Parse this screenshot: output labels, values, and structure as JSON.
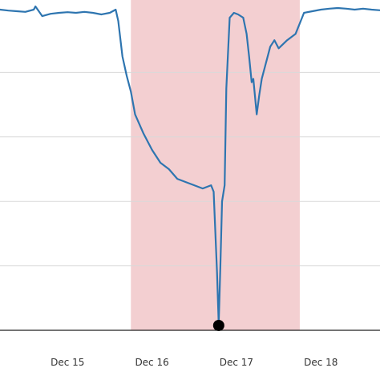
{
  "chart_data": {
    "type": "line",
    "title": "",
    "xlabel": "",
    "ylabel": "",
    "x_ticks": [
      {
        "x": 15,
        "label": "Dec 15"
      },
      {
        "x": 16,
        "label": "Dec 16"
      },
      {
        "x": 17,
        "label": "Dec 17"
      },
      {
        "x": 18,
        "label": "Dec 18"
      }
    ],
    "xlim": [
      14.2,
      18.7
    ],
    "ylim": [
      0,
      1
    ],
    "gridlines_y": [
      0.2,
      0.4,
      0.6,
      0.8
    ],
    "grid": "horizontal",
    "legend": "none",
    "shaded_region": {
      "from": 15.75,
      "to": 17.75,
      "color": "#f3cfd1"
    },
    "marker": {
      "x": 16.79,
      "y": 0.02,
      "color": "#000000"
    },
    "series": [
      {
        "color": "#2e75b0",
        "points": [
          [
            14.2,
            0.995
          ],
          [
            14.3,
            0.992
          ],
          [
            14.4,
            0.99
          ],
          [
            14.5,
            0.988
          ],
          [
            14.6,
            0.995
          ],
          [
            14.62,
            1.005
          ],
          [
            14.7,
            0.975
          ],
          [
            14.8,
            0.982
          ],
          [
            14.9,
            0.985
          ],
          [
            15.0,
            0.987
          ],
          [
            15.1,
            0.985
          ],
          [
            15.2,
            0.988
          ],
          [
            15.3,
            0.985
          ],
          [
            15.4,
            0.98
          ],
          [
            15.5,
            0.985
          ],
          [
            15.57,
            0.995
          ],
          [
            15.6,
            0.96
          ],
          [
            15.65,
            0.85
          ],
          [
            15.7,
            0.79
          ],
          [
            15.75,
            0.74
          ],
          [
            15.8,
            0.67
          ],
          [
            15.9,
            0.61
          ],
          [
            16.0,
            0.56
          ],
          [
            16.1,
            0.52
          ],
          [
            16.2,
            0.5
          ],
          [
            16.3,
            0.47
          ],
          [
            16.4,
            0.46
          ],
          [
            16.5,
            0.45
          ],
          [
            16.6,
            0.44
          ],
          [
            16.65,
            0.445
          ],
          [
            16.7,
            0.45
          ],
          [
            16.73,
            0.43
          ],
          [
            16.77,
            0.18
          ],
          [
            16.79,
            0.02
          ],
          [
            16.81,
            0.2
          ],
          [
            16.83,
            0.4
          ],
          [
            16.86,
            0.45
          ],
          [
            16.88,
            0.75
          ],
          [
            16.92,
            0.97
          ],
          [
            16.97,
            0.985
          ],
          [
            17.02,
            0.98
          ],
          [
            17.08,
            0.97
          ],
          [
            17.12,
            0.92
          ],
          [
            17.15,
            0.85
          ],
          [
            17.18,
            0.77
          ],
          [
            17.2,
            0.78
          ],
          [
            17.24,
            0.67
          ],
          [
            17.27,
            0.73
          ],
          [
            17.3,
            0.78
          ],
          [
            17.4,
            0.88
          ],
          [
            17.45,
            0.9
          ],
          [
            17.5,
            0.875
          ],
          [
            17.6,
            0.9
          ],
          [
            17.7,
            0.92
          ],
          [
            17.8,
            0.985
          ],
          [
            17.9,
            0.99
          ],
          [
            18.0,
            0.995
          ],
          [
            18.1,
            0.998
          ],
          [
            18.2,
            1.0
          ],
          [
            18.3,
            0.998
          ],
          [
            18.4,
            0.995
          ],
          [
            18.5,
            0.998
          ],
          [
            18.6,
            0.995
          ],
          [
            18.7,
            0.993
          ]
        ]
      }
    ]
  }
}
